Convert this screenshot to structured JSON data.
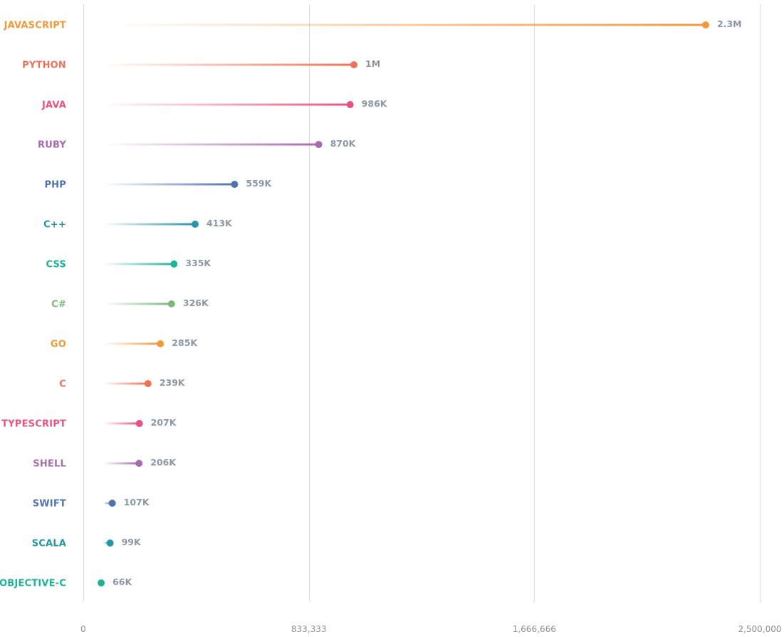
{
  "chart_data": {
    "type": "lollipop",
    "categories": [
      "JAVASCRIPT",
      "PYTHON",
      "JAVA",
      "RUBY",
      "PHP",
      "C++",
      "CSS",
      "C#",
      "GO",
      "C",
      "TYPESCRIPT",
      "SHELL",
      "SWIFT",
      "SCALA",
      "OBJECTIVE-C"
    ],
    "values": [
      2300000,
      1000000,
      986000,
      870000,
      559000,
      413000,
      335000,
      326000,
      285000,
      239000,
      207000,
      206000,
      107000,
      99000,
      66000
    ],
    "value_labels": [
      "2.3M",
      "1M",
      "986K",
      "870K",
      "559K",
      "413K",
      "335K",
      "326K",
      "285K",
      "239K",
      "207K",
      "206K",
      "107K",
      "99K",
      "66K"
    ],
    "colors": [
      "#f09a3a",
      "#ec7259",
      "#e55480",
      "#a66aad",
      "#5073b0",
      "#2596a8",
      "#1db39a",
      "#7cb87b",
      "#f09a3a",
      "#ec7259",
      "#e55480",
      "#a66aad",
      "#5073b0",
      "#2596a8",
      "#1db39a"
    ],
    "xlim": [
      0,
      2500000
    ],
    "x_ticks": [
      0,
      833333,
      1666666,
      2500000
    ],
    "x_tick_labels": [
      "0",
      "833,333",
      "1,666,666",
      "2,500,000"
    ],
    "grid": true,
    "title": "",
    "xlabel": "",
    "ylabel": ""
  }
}
